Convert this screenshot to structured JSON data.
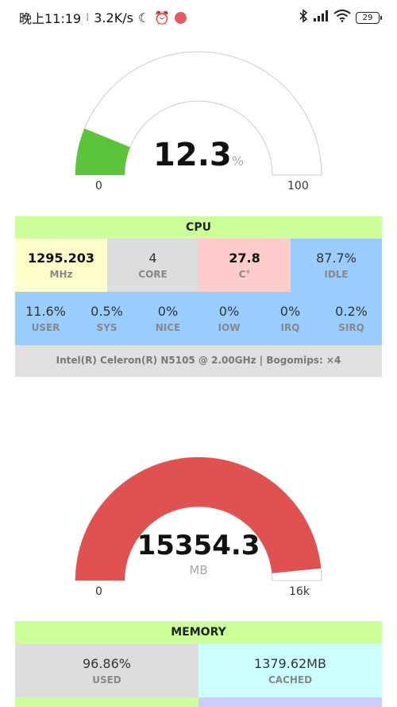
{
  "statusbar": {
    "time": "晚上11:19",
    "speed": "3.2K/s",
    "battery": "29",
    "icons": [
      "moon-icon",
      "alarm-icon",
      "app-notification-icon",
      "bluetooth-icon",
      "signal-icon",
      "wifi-icon",
      "battery-icon"
    ]
  },
  "cpu_gauge": {
    "value": "12.3",
    "unit": "%",
    "min": "0",
    "max": "100",
    "fill_fraction": 0.123,
    "fill_color": "#5cc43a"
  },
  "cpu": {
    "title": "CPU",
    "freq": {
      "value": "1295.203",
      "unit": "MHz"
    },
    "cores": {
      "value": "4",
      "unit": "CORE"
    },
    "temp": {
      "value": "27.8",
      "unit": "C°"
    },
    "idle": {
      "value": "87.7%",
      "unit": "IDLE"
    },
    "user": {
      "value": "11.6%",
      "unit": "USER"
    },
    "sys": {
      "value": "0.5%",
      "unit": "SYS"
    },
    "nice": {
      "value": "0%",
      "unit": "NICE"
    },
    "iow": {
      "value": "0%",
      "unit": "IOW"
    },
    "irq": {
      "value": "0%",
      "unit": "IRQ"
    },
    "sirq": {
      "value": "0.2%",
      "unit": "SIRQ"
    },
    "info": "Intel(R) Celeron(R) N5105 @ 2.00GHz | Bogomips: ×4"
  },
  "mem_gauge": {
    "value": "15354.3",
    "unit": "MB",
    "min": "0",
    "max": "16k",
    "fill_fraction": 0.9686,
    "fill_color": "#e05252"
  },
  "memory": {
    "title": "MEMORY",
    "used": {
      "value": "96.86%",
      "unit": "USED"
    },
    "cached": {
      "value": "1379.62MB",
      "unit": "CACHED"
    }
  }
}
